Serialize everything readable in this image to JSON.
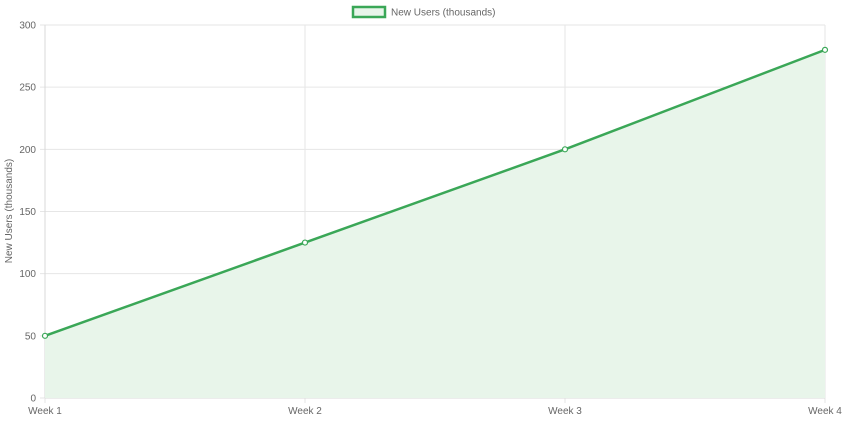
{
  "chart_data": {
    "type": "area",
    "categories": [
      "Week 1",
      "Week 2",
      "Week 3",
      "Week 4"
    ],
    "series": [
      {
        "name": "New Users (thousands)",
        "values": [
          50,
          125,
          200,
          280
        ]
      }
    ],
    "ylabel": "New Users (thousands)",
    "xlabel": "",
    "ylim": [
      0,
      300
    ],
    "yticks": [
      0,
      50,
      100,
      150,
      200,
      250,
      300
    ],
    "grid": true,
    "legend_position": "top-center",
    "colors": {
      "line": "#3aa757",
      "fill": "#e8f5ea",
      "grid": "#e6e6e6",
      "text": "#666666"
    }
  }
}
